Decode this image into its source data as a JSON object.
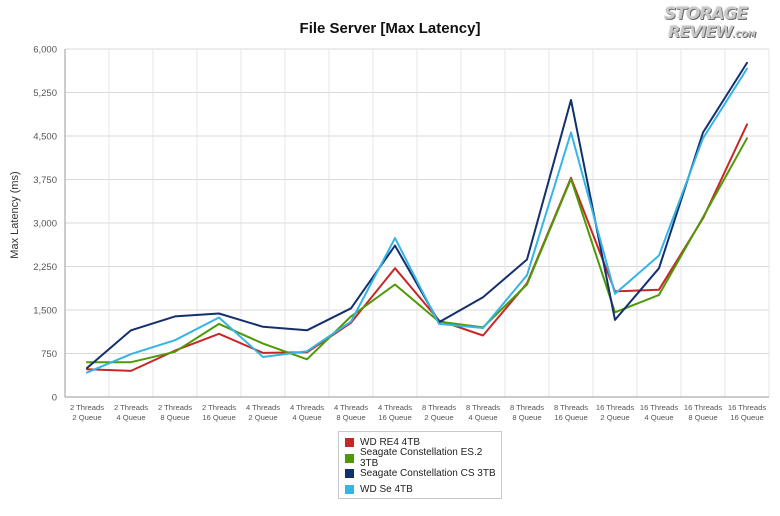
{
  "logo": {
    "line1": "STORAGE",
    "line2": "REVIEW",
    "suffix": ".COM"
  },
  "chart_data": {
    "type": "line",
    "title": "File Server [Max Latency]",
    "xlabel": "",
    "ylabel": "Max Latency (ms)",
    "ylim": [
      0,
      6000
    ],
    "yticks": [
      0,
      750,
      1500,
      2250,
      3000,
      3750,
      4500,
      5250,
      6000
    ],
    "ytick_labels": [
      "0",
      "750",
      "1,500",
      "2,250",
      "3,000",
      "3,750",
      "4,500",
      "5,250",
      "6,000"
    ],
    "grid": true,
    "legend_position": "bottom-center",
    "categories": [
      [
        "2 Threads",
        "2 Queue"
      ],
      [
        "2 Threads",
        "4 Queue"
      ],
      [
        "2 Threads",
        "8 Queue"
      ],
      [
        "2 Threads",
        "16 Queue"
      ],
      [
        "4 Threads",
        "2 Queue"
      ],
      [
        "4 Threads",
        "4 Queue"
      ],
      [
        "4 Threads",
        "8 Queue"
      ],
      [
        "4 Threads",
        "16 Queue"
      ],
      [
        "8 Threads",
        "2 Queue"
      ],
      [
        "8 Threads",
        "4 Queue"
      ],
      [
        "8 Threads",
        "8 Queue"
      ],
      [
        "8 Threads",
        "16 Queue"
      ],
      [
        "16 Threads",
        "2 Queue"
      ],
      [
        "16 Threads",
        "4 Queue"
      ],
      [
        "16 Threads",
        "8 Queue"
      ],
      [
        "16 Threads",
        "16 Queue"
      ]
    ],
    "series": [
      {
        "name": "WD RE4 4TB",
        "color": "#c62828",
        "values": [
          480,
          450,
          800,
          1090,
          760,
          770,
          1280,
          2220,
          1320,
          1060,
          1960,
          3780,
          1820,
          1850,
          3080,
          4700
        ]
      },
      {
        "name": "Seagate Constellation ES.2 3TB",
        "color": "#4e9a06",
        "values": [
          600,
          600,
          780,
          1260,
          920,
          650,
          1390,
          1940,
          1300,
          1200,
          1940,
          3760,
          1460,
          1760,
          3100,
          4460
        ]
      },
      {
        "name": "Seagate Constellation CS 3TB",
        "color": "#13306e",
        "values": [
          500,
          1150,
          1390,
          1440,
          1210,
          1150,
          1530,
          2610,
          1290,
          1720,
          2370,
          5120,
          1330,
          2220,
          4560,
          5760
        ]
      },
      {
        "name": "WD Se 4TB",
        "color": "#36b4e5",
        "values": [
          420,
          740,
          980,
          1370,
          690,
          790,
          1300,
          2740,
          1260,
          1190,
          2100,
          4560,
          1780,
          2440,
          4460,
          5660
        ]
      }
    ]
  }
}
